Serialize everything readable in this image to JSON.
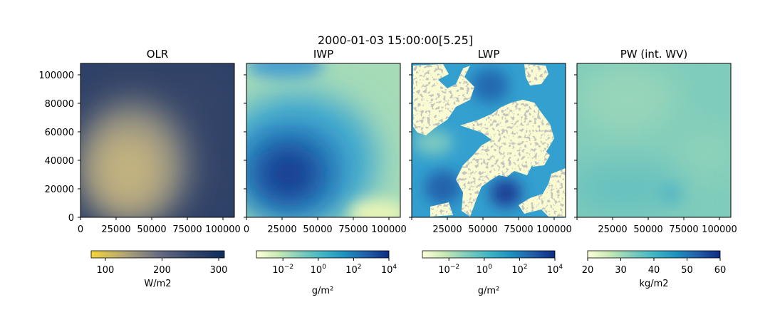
{
  "figure": {
    "suptitle": "2000-01-03 15:00:00[5.25]"
  },
  "chart_data": [
    {
      "type": "heatmap",
      "title": "OLR",
      "x_ticks": [
        "0",
        "25000",
        "50000",
        "75000",
        "100000"
      ],
      "y_ticks": [
        "0",
        "20000",
        "40000",
        "60000",
        "80000",
        "100000"
      ],
      "xlim": [
        0,
        108000
      ],
      "ylim": [
        0,
        108000
      ],
      "colorbar": {
        "label": "W/m2",
        "scale": "linear",
        "range": [
          75,
          310
        ],
        "ticks": [
          {
            "v": 100,
            "t": "100"
          },
          {
            "v": 200,
            "t": "200"
          },
          {
            "v": 300,
            "t": "300"
          }
        ],
        "colors": [
          "#f5d33a",
          "#b2a676",
          "#6a6e84",
          "#34476b",
          "#0f2c5c"
        ]
      },
      "field": {
        "background_value": 280,
        "features": [
          {
            "name": "low-OLR cloud region",
            "center": [
              38000,
              38000
            ],
            "value": 180
          }
        ]
      }
    },
    {
      "type": "heatmap",
      "title": "IWP",
      "x_ticks": [
        "0",
        "25000",
        "50000",
        "75000",
        "100000"
      ],
      "xlim": [
        0,
        108000
      ],
      "ylim": [
        0,
        108000
      ],
      "colorbar": {
        "label": "g/m²",
        "scale": "log",
        "range": [
          -3.5,
          4
        ],
        "ticks": [
          {
            "v": -2,
            "t": "10−2"
          },
          {
            "v": 0,
            "t": "100"
          },
          {
            "v": 2,
            "t": "102"
          },
          {
            "v": 4,
            "t": "104"
          }
        ],
        "colors": [
          "#ffffd9",
          "#c7e9b4",
          "#7fcdbb",
          "#41b6c4",
          "#1d91c0",
          "#225ea8",
          "#0c2c84"
        ]
      },
      "field": {
        "background_value": 0.5,
        "features": [
          {
            "name": "ice cloud maximum",
            "center": [
              32000,
              32000
            ],
            "value": 3
          }
        ]
      }
    },
    {
      "type": "heatmap",
      "title": "LWP",
      "x_ticks": [
        "25000",
        "50000",
        "75000",
        "100000"
      ],
      "xlim": [
        0,
        108000
      ],
      "ylim": [
        0,
        108000
      ],
      "colorbar": {
        "label": "g/m²",
        "scale": "log",
        "range": [
          -3.5,
          4
        ],
        "ticks": [
          {
            "v": -2,
            "t": "10−2"
          },
          {
            "v": 0,
            "t": "100"
          },
          {
            "v": 2,
            "t": "102"
          },
          {
            "v": 4,
            "t": "104"
          }
        ],
        "colors": [
          "#ffffd9",
          "#c7e9b4",
          "#7fcdbb",
          "#41b6c4",
          "#1d91c0",
          "#225ea8",
          "#0c2c84"
        ]
      },
      "field": {
        "background_value": 1.5,
        "features": [
          {
            "name": "liquid maximum",
            "center": [
              66000,
              17000
            ],
            "value": 2.6
          },
          {
            "name": "liquid maximum",
            "center": [
              20000,
              20000
            ],
            "value": 2.3
          },
          {
            "name": "liquid maximum",
            "center": [
              55000,
              88000
            ],
            "value": 2.2
          }
        ],
        "near_zero_regions": "cream patches with gray speckle"
      }
    },
    {
      "type": "heatmap",
      "title": "PW (int. WV)",
      "x_ticks": [
        "25000",
        "50000",
        "75000",
        "100000"
      ],
      "xlim": [
        0,
        108000
      ],
      "ylim": [
        0,
        108000
      ],
      "colorbar": {
        "label": "kg/m2",
        "scale": "linear",
        "range": [
          20,
          60
        ],
        "ticks": [
          {
            "v": 20,
            "t": "20"
          },
          {
            "v": 30,
            "t": "30"
          },
          {
            "v": 40,
            "t": "40"
          },
          {
            "v": 50,
            "t": "50"
          },
          {
            "v": 60,
            "t": "60"
          }
        ],
        "colors": [
          "#ffffd9",
          "#c7e9b4",
          "#7fcdbb",
          "#41b6c4",
          "#1d91c0",
          "#225ea8",
          "#0c2c84"
        ]
      },
      "field": {
        "background_value": 34,
        "features": [
          {
            "name": "moist spot",
            "center": [
              66000,
              17000
            ],
            "value": 37
          }
        ]
      }
    }
  ]
}
